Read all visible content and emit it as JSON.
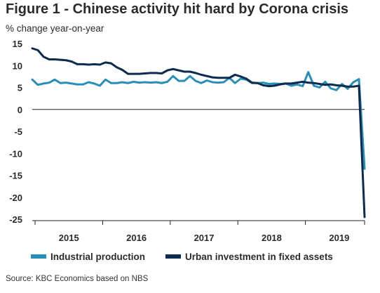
{
  "title": "Figure 1 - Chinese activity hit hard by Corona crisis",
  "subtitle": "% change year-on-year",
  "source": "Source: KBC Economics based on NBS",
  "chart_data": {
    "type": "line",
    "x_start": "2014-12",
    "x_end": "2020-02",
    "x_ticks": [
      "2015",
      "2016",
      "2017",
      "2018",
      "2019"
    ],
    "ylim": [
      -25,
      15
    ],
    "y_ticks": [
      "15",
      "10",
      "5",
      "0",
      "-5",
      "-10",
      "-15",
      "-20",
      "-25"
    ],
    "colors": {
      "industrial": "#2a8fb8",
      "investment": "#0d2b4e",
      "axis": "#222222"
    },
    "series": [
      {
        "name": "Industrial production",
        "color": "#2a8fb8",
        "values": [
          6.8,
          5.6,
          5.9,
          6.1,
          6.8,
          6.0,
          6.1,
          5.9,
          5.7,
          5.7,
          6.2,
          5.9,
          5.4,
          6.8,
          6.0,
          6.0,
          6.2,
          6.0,
          6.3,
          6.1,
          6.2,
          6.1,
          6.2,
          6.0,
          6.3,
          7.6,
          6.5,
          6.5,
          7.6,
          6.5,
          6.0,
          6.6,
          6.2,
          6.1,
          6.2,
          7.2,
          6.0,
          7.0,
          6.8,
          6.0,
          6.0,
          6.1,
          5.8,
          5.9,
          5.8,
          5.9,
          5.4,
          5.7,
          5.3,
          8.5,
          5.4,
          5.0,
          6.3,
          4.8,
          4.4,
          5.8,
          4.7,
          6.2,
          6.9,
          -13.5
        ]
      },
      {
        "name": "Urban investment in fixed assets",
        "color": "#0d2b4e",
        "values": [
          13.9,
          13.5,
          12.0,
          11.4,
          11.4,
          11.3,
          11.2,
          10.9,
          10.3,
          10.3,
          10.2,
          10.3,
          10.2,
          10.7,
          10.5,
          9.6,
          9.0,
          8.1,
          8.1,
          8.1,
          8.2,
          8.3,
          8.3,
          8.2,
          8.9,
          9.2,
          8.9,
          8.6,
          8.6,
          8.3,
          7.9,
          7.6,
          7.3,
          7.2,
          7.2,
          7.2,
          7.9,
          7.5,
          7.0,
          6.1,
          6.0,
          5.5,
          5.3,
          5.4,
          5.7,
          5.9,
          5.9,
          6.1,
          6.3,
          6.1,
          6.0,
          5.8,
          5.6,
          5.7,
          5.5,
          5.4,
          5.2,
          5.2,
          5.4,
          -24.5
        ]
      }
    ]
  }
}
